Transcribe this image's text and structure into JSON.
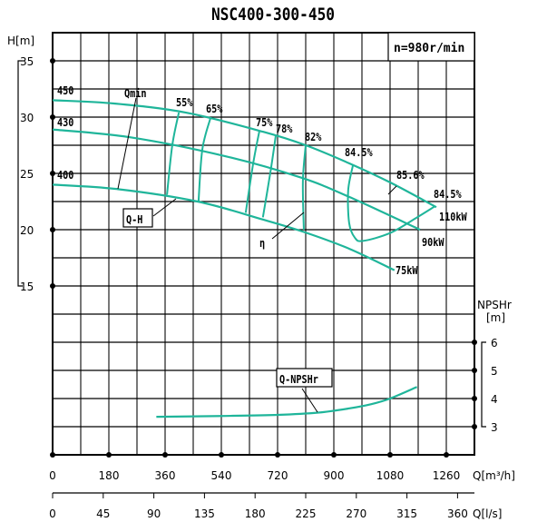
{
  "chart_data": {
    "type": "line",
    "title": "NSC400-300-450",
    "speed_label": "n=980r/min",
    "x_axis": {
      "label": "Q[m³/h]",
      "range": [
        0,
        1350
      ],
      "ticks": [
        "0",
        "180",
        "360",
        "540",
        "720",
        "900",
        "1080",
        "1260"
      ]
    },
    "x2_axis": {
      "label": "Q[l/s]",
      "range": [
        0,
        375
      ],
      "ticks": [
        "0",
        "45",
        "90",
        "135",
        "180",
        "225",
        "270",
        "315",
        "360"
      ]
    },
    "y_axis": {
      "label": "H[m]",
      "range": [
        0,
        37.5
      ],
      "ticks": [
        "35",
        "30",
        "25",
        "20",
        "15"
      ]
    },
    "y2_axis": {
      "label_top": "NPSHr",
      "label_unit": "[m]",
      "range": [
        2,
        17
      ],
      "ticks": [
        "6",
        "5",
        "4",
        "3"
      ]
    },
    "grid": true,
    "series": [
      {
        "name": "450",
        "kind": "Q-H",
        "points": [
          [
            0,
            31.5
          ],
          [
            200,
            31.2
          ],
          [
            427,
            30.4
          ],
          [
            673,
            28.7
          ],
          [
            810,
            27.5
          ],
          [
            949,
            25.9
          ],
          [
            1080,
            24.2
          ],
          [
            1228,
            22.0
          ]
        ]
      },
      {
        "name": "430",
        "kind": "Q-H",
        "points": [
          [
            0,
            28.9
          ],
          [
            250,
            28.2
          ],
          [
            557,
            26.5
          ],
          [
            798,
            24.6
          ],
          [
            950,
            22.9
          ],
          [
            1176,
            20.0
          ]
        ]
      },
      {
        "name": "400",
        "kind": "Q-H",
        "points": [
          [
            0,
            24.0
          ],
          [
            209,
            23.6
          ],
          [
            464,
            22.5
          ],
          [
            673,
            20.9
          ],
          [
            804,
            19.8
          ],
          [
            950,
            18.3
          ],
          [
            1094,
            16.4
          ]
        ]
      }
    ],
    "efficiency_lines": [
      {
        "name": "55%",
        "points": [
          [
            404,
            30.4
          ],
          [
            383,
            27.5
          ],
          [
            366,
            23.1
          ]
        ]
      },
      {
        "name": "65%",
        "points": [
          [
            505,
            29.9
          ],
          [
            479,
            27.1
          ],
          [
            467,
            22.5
          ]
        ]
      },
      {
        "name": "75%",
        "points": [
          [
            662,
            28.8
          ],
          [
            642,
            25.9
          ],
          [
            618,
            21.5
          ]
        ]
      },
      {
        "name": "78%",
        "points": [
          [
            714,
            28.3
          ],
          [
            697,
            25.1
          ],
          [
            673,
            21.1
          ]
        ]
      },
      {
        "name": "82%",
        "points": [
          [
            810,
            27.5
          ],
          [
            801,
            24.3
          ],
          [
            804,
            20.0
          ]
        ]
      },
      {
        "name": "84.5%",
        "points": [
          [
            961,
            25.7
          ],
          [
            946,
            23.5
          ],
          [
            949,
            20.6
          ],
          [
            967,
            19.3
          ],
          [
            993,
            19.0
          ],
          [
            1080,
            19.7
          ],
          [
            1161,
            21.0
          ],
          [
            1225,
            22.1
          ]
        ]
      }
    ],
    "npshr_curve": {
      "name": "Q-NPSHr",
      "points": [
        [
          332,
          3.35
        ],
        [
          540,
          3.38
        ],
        [
          720,
          3.42
        ],
        [
          850,
          3.5
        ],
        [
          950,
          3.65
        ],
        [
          1020,
          3.8
        ],
        [
          1080,
          4.0
        ],
        [
          1166,
          4.41
        ]
      ]
    },
    "labels": {
      "impeller_450": "450",
      "impeller_430": "430",
      "impeller_400": "400",
      "qmin": "Qmin",
      "qh": "Q-H",
      "eta": "η",
      "q_npshr": "Q-NPSHr",
      "eff_55": "55%",
      "eff_65": "65%",
      "eff_75": "75%",
      "eff_78": "78%",
      "eff_82": "82%",
      "eff_845_left": "84.5%",
      "eff_856": "85.6%",
      "eff_845_right": "84.5%",
      "power_110": "110kW",
      "power_90": "90kW",
      "power_75": "75kW"
    },
    "colors": {
      "curve": "#1fb59a",
      "grid": "#000000"
    }
  }
}
